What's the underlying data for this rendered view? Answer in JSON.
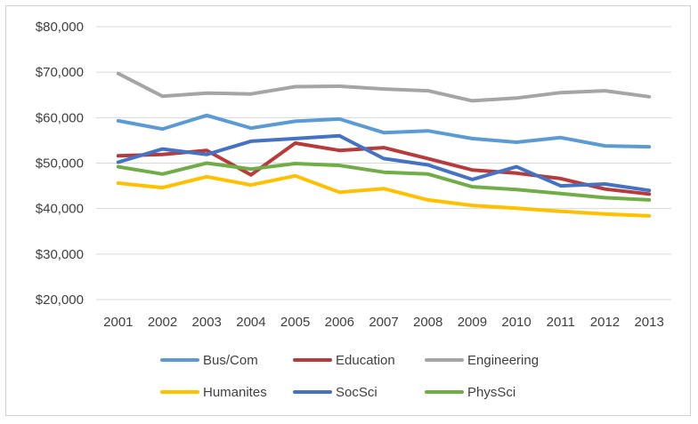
{
  "chart_data": {
    "type": "line",
    "title": "",
    "xlabel": "",
    "ylabel": "",
    "categories": [
      "2001",
      "2002",
      "2003",
      "2004",
      "2005",
      "2006",
      "2007",
      "2008",
      "2009",
      "2010",
      "2011",
      "2012",
      "2013"
    ],
    "ylim": [
      20000,
      80000
    ],
    "yticks": [
      20000,
      30000,
      40000,
      50000,
      60000,
      70000,
      80000
    ],
    "ytick_labels": [
      "$20,000",
      "$30,000",
      "$40,000",
      "$50,000",
      "$60,000",
      "$70,000",
      "$80,000"
    ],
    "grid": true,
    "legend_position": "bottom",
    "series": [
      {
        "name": "Bus/Com",
        "color": "#5b9bd5",
        "values": [
          59300,
          57500,
          60500,
          57700,
          59200,
          59700,
          56700,
          57100,
          55400,
          54600,
          55600,
          53800,
          53600
        ]
      },
      {
        "name": "Education",
        "color": "#b83a3a",
        "values": [
          51600,
          51900,
          52800,
          47400,
          54400,
          52800,
          53400,
          51000,
          48500,
          47800,
          46600,
          44300,
          43200
        ]
      },
      {
        "name": "Engineering",
        "color": "#a5a5a5",
        "values": [
          69700,
          64700,
          65400,
          65200,
          66800,
          66900,
          66300,
          65900,
          63700,
          64300,
          65500,
          65900,
          64600
        ]
      },
      {
        "name": "Humanites",
        "color": "#ffc000",
        "values": [
          45600,
          44600,
          47000,
          45200,
          47200,
          43600,
          44400,
          41900,
          40700,
          40100,
          39400,
          38800,
          38400
        ]
      },
      {
        "name": "SocSci",
        "color": "#4472c4",
        "values": [
          50200,
          53100,
          51900,
          54800,
          55400,
          56000,
          51000,
          49600,
          46400,
          49200,
          45000,
          45400,
          44000
        ]
      },
      {
        "name": "PhysSci",
        "color": "#70ad47",
        "values": [
          49200,
          47600,
          50000,
          48700,
          49900,
          49500,
          48000,
          47600,
          44800,
          44200,
          43300,
          42400,
          41900
        ]
      }
    ]
  }
}
